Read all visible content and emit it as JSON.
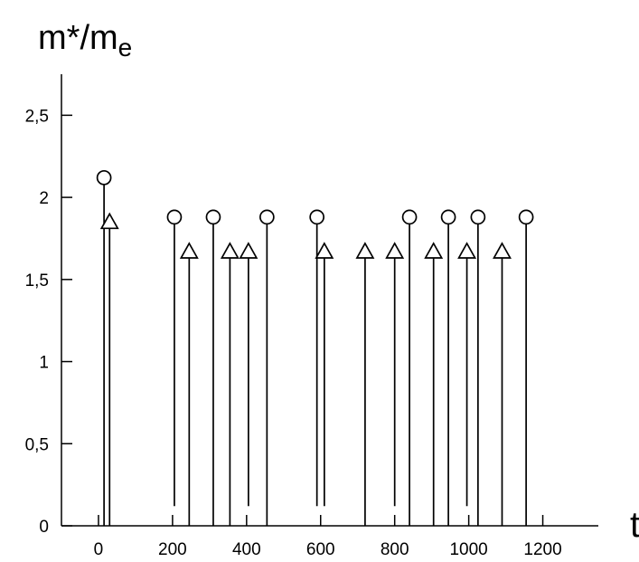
{
  "chart_data": {
    "type": "scatter",
    "title": "",
    "ylabel": {
      "main": "m*/m",
      "subscript": "e"
    },
    "xlabel": "t",
    "xlim": [
      -100,
      1350
    ],
    "ylim": [
      0,
      2.75
    ],
    "x_ticks": [
      {
        "value": 0,
        "label": "0"
      },
      {
        "value": 200,
        "label": "200"
      },
      {
        "value": 400,
        "label": "400"
      },
      {
        "value": 600,
        "label": "600"
      },
      {
        "value": 800,
        "label": "800"
      },
      {
        "value": 1000,
        "label": "1000"
      },
      {
        "value": 1200,
        "label": "1200"
      }
    ],
    "y_ticks": [
      {
        "value": 0,
        "label": "0"
      },
      {
        "value": 0.5,
        "label": "0,5"
      },
      {
        "value": 1,
        "label": "1"
      },
      {
        "value": 1.5,
        "label": "1,5"
      },
      {
        "value": 2,
        "label": "2"
      },
      {
        "value": 2.5,
        "label": "2,5"
      }
    ],
    "grid": false,
    "series": [
      {
        "marker": "circle",
        "points": [
          {
            "x": 15,
            "y": 2.12,
            "stem_bottom": 0
          },
          {
            "x": 205,
            "y": 1.88,
            "stem_bottom": 0.12
          },
          {
            "x": 310,
            "y": 1.88,
            "stem_bottom": 0
          },
          {
            "x": 455,
            "y": 1.88,
            "stem_bottom": 0
          },
          {
            "x": 590,
            "y": 1.88,
            "stem_bottom": 0.12
          },
          {
            "x": 840,
            "y": 1.88,
            "stem_bottom": 0
          },
          {
            "x": 945,
            "y": 1.88,
            "stem_bottom": 0
          },
          {
            "x": 1025,
            "y": 1.88,
            "stem_bottom": 0
          },
          {
            "x": 1155,
            "y": 1.88,
            "stem_bottom": 0
          }
        ]
      },
      {
        "marker": "triangle",
        "points": [
          {
            "x": 30,
            "y": 1.85,
            "stem_bottom": 0
          },
          {
            "x": 245,
            "y": 1.67,
            "stem_bottom": 0
          },
          {
            "x": 355,
            "y": 1.67,
            "stem_bottom": 0
          },
          {
            "x": 405,
            "y": 1.67,
            "stem_bottom": 0.12
          },
          {
            "x": 610,
            "y": 1.67,
            "stem_bottom": 0.12
          },
          {
            "x": 720,
            "y": 1.67,
            "stem_bottom": 0
          },
          {
            "x": 800,
            "y": 1.67,
            "stem_bottom": 0.12
          },
          {
            "x": 905,
            "y": 1.67,
            "stem_bottom": 0
          },
          {
            "x": 995,
            "y": 1.67,
            "stem_bottom": 0.12
          },
          {
            "x": 1090,
            "y": 1.67,
            "stem_bottom": 0
          }
        ]
      }
    ]
  }
}
